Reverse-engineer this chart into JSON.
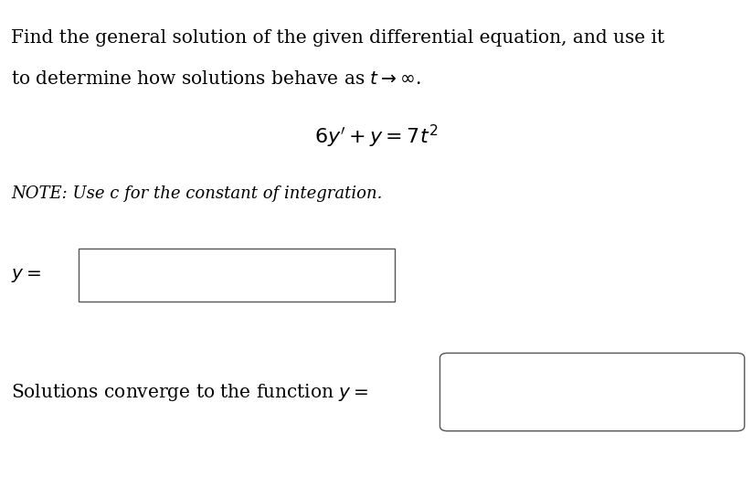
{
  "background_color": "#ffffff",
  "border_color": "#555555",
  "title_line1": "Find the general solution of the given differential equation, and use it",
  "title_line2": "to determine how solutions behave as $t \\rightarrow \\infty$.",
  "equation": "$6y' + y = 7t^2$",
  "note_text": "NOTE: Use c for the constant of integration.",
  "label_y": "$y = $",
  "label_solutions": "Solutions converge to the function $y =$",
  "font_size_body": 14.5,
  "font_size_equation": 16,
  "font_size_note": 13
}
